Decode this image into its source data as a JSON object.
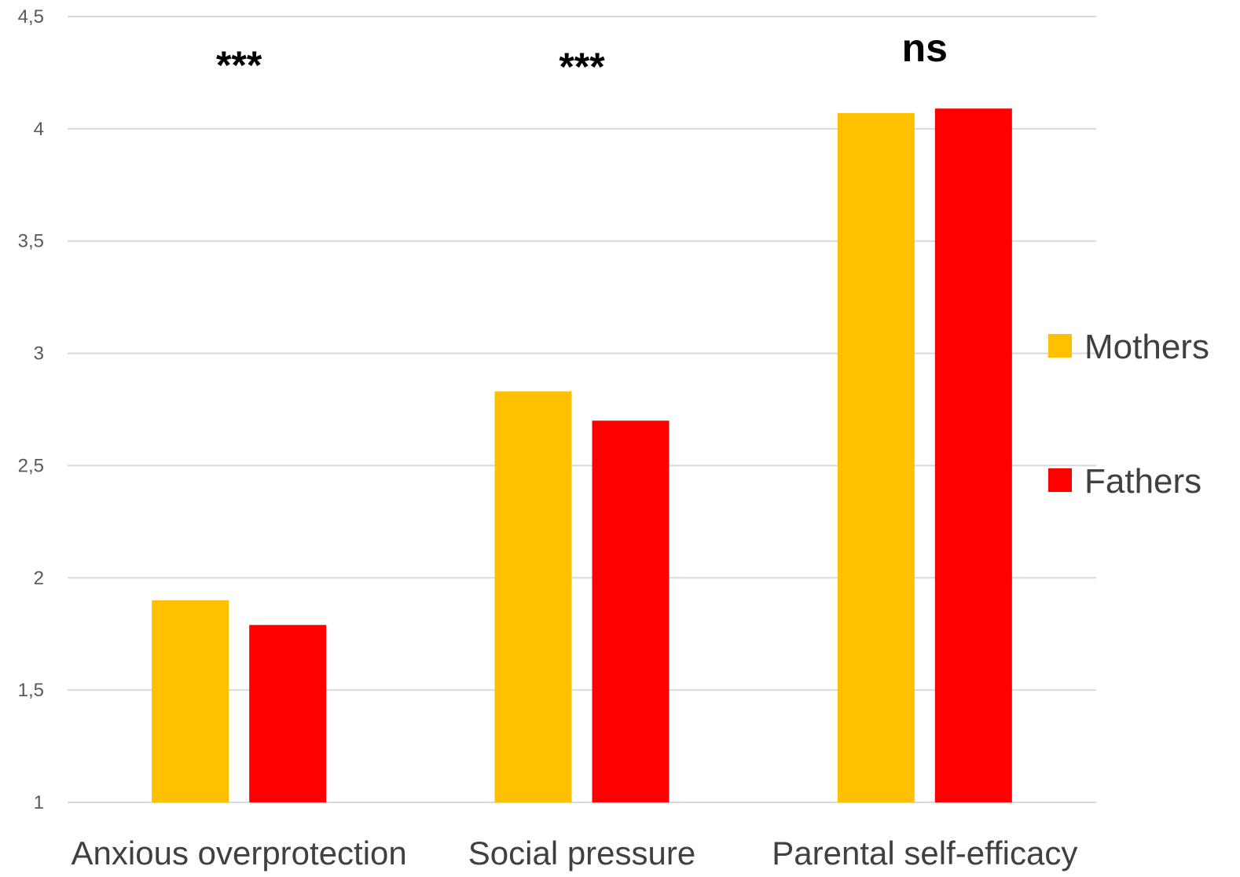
{
  "chart_data": {
    "type": "bar",
    "categories": [
      "Anxious overprotection",
      "Social pressure",
      "Parental self-efficacy"
    ],
    "series": [
      {
        "name": "Mothers",
        "values": [
          1.9,
          2.83,
          4.07
        ],
        "color": "#FFC000"
      },
      {
        "name": "Fathers",
        "values": [
          1.79,
          2.7,
          4.09
        ],
        "color": "#FF0000"
      }
    ],
    "significance": [
      "***",
      "***",
      "ns"
    ],
    "ylim": [
      1,
      4.5
    ],
    "yticks": [
      "1",
      "1,5",
      "2",
      "2,5",
      "3",
      "3,5",
      "4",
      "4,5"
    ],
    "grid": true,
    "legend_position": "right",
    "title": "",
    "xlabel": "",
    "ylabel": ""
  }
}
